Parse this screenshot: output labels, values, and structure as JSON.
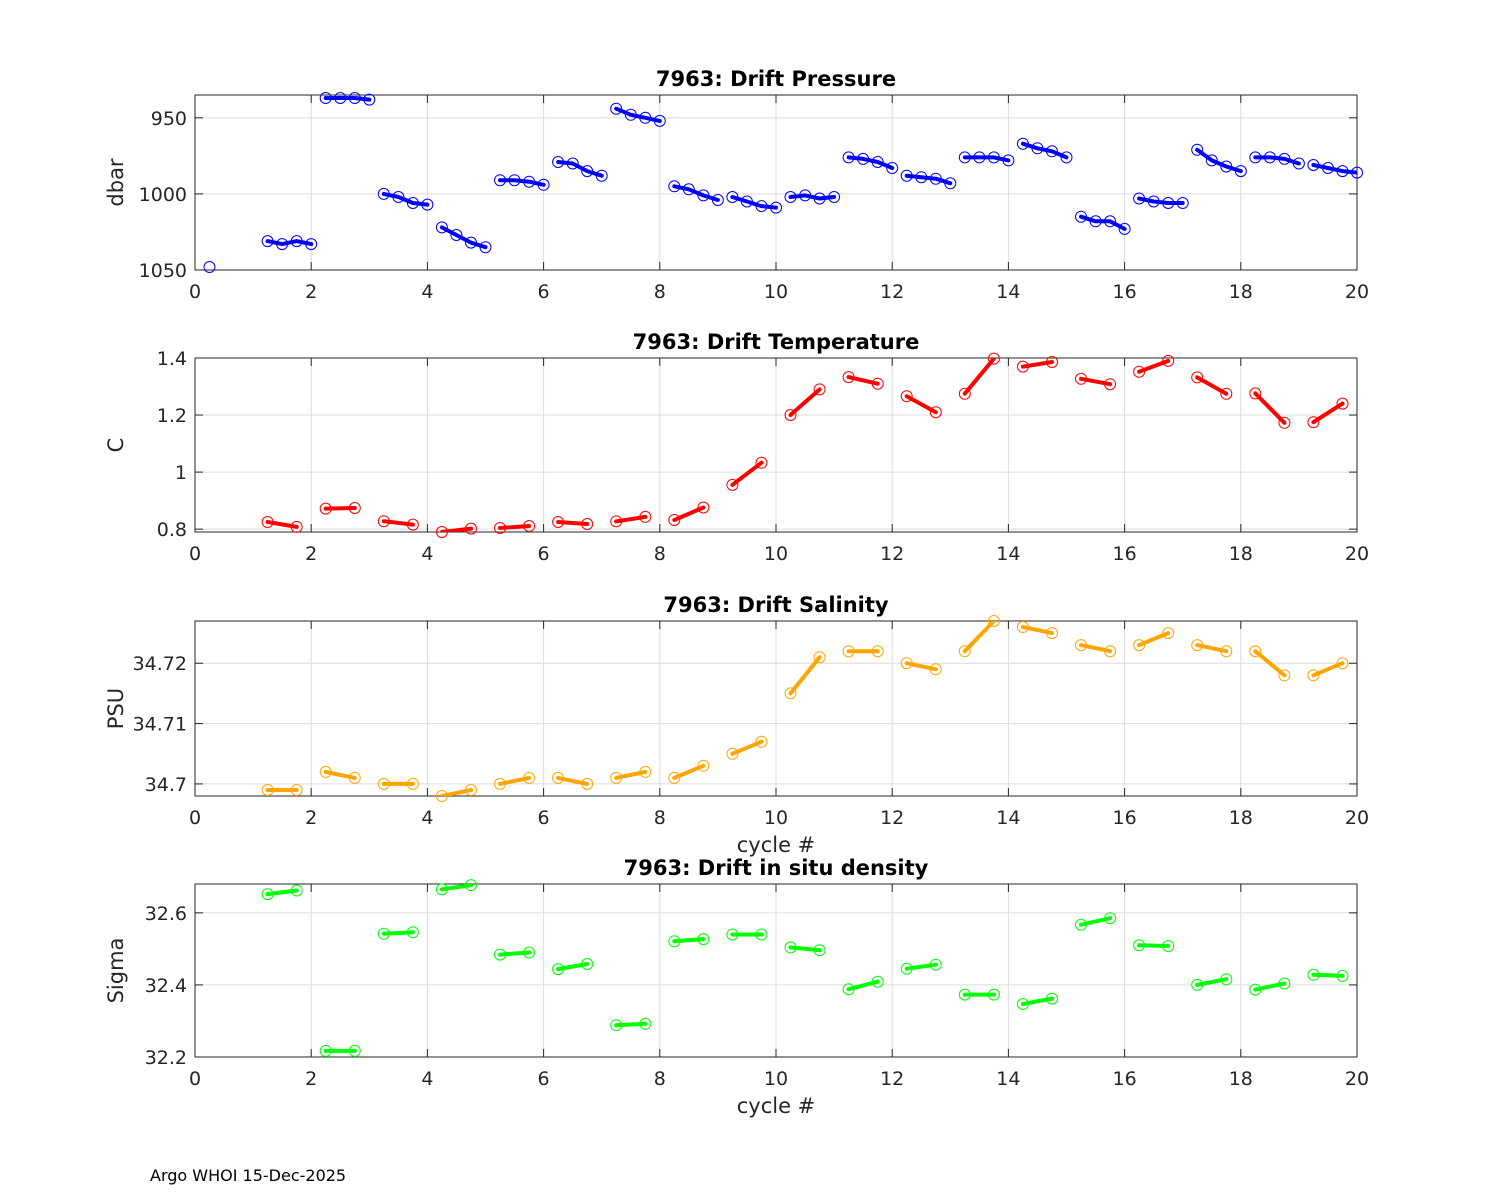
{
  "footer": "Argo WHOI 15-Dec-2025",
  "chart_data": [
    {
      "type": "line",
      "title": "7963: Drift Pressure",
      "xlabel": "",
      "ylabel": "dbar",
      "color": "#0000ff",
      "xlim": [
        0,
        20
      ],
      "ylim": [
        1050,
        935
      ],
      "reverse_y": true,
      "xticks": [
        0,
        2,
        4,
        6,
        8,
        10,
        12,
        14,
        16,
        18,
        20
      ],
      "yticks": [
        950,
        1000,
        1050
      ],
      "grid": true,
      "series": [
        {
          "name": "cycle-0",
          "x": [
            0.25
          ],
          "y": [
            1048
          ]
        },
        {
          "name": "cycle-1",
          "x": [
            1.25,
            1.5,
            1.75,
            2.0
          ],
          "y": [
            1031,
            1033,
            1031,
            1033
          ]
        },
        {
          "name": "cycle-2",
          "x": [
            2.25,
            2.5,
            2.75,
            3.0
          ],
          "y": [
            937,
            937,
            937,
            938
          ]
        },
        {
          "name": "cycle-3",
          "x": [
            3.25,
            3.5,
            3.75,
            4.0
          ],
          "y": [
            1000,
            1002,
            1006,
            1007
          ]
        },
        {
          "name": "cycle-4",
          "x": [
            4.25,
            4.5,
            4.75,
            5.0
          ],
          "y": [
            1022,
            1027,
            1032,
            1035
          ]
        },
        {
          "name": "cycle-5",
          "x": [
            5.25,
            5.5,
            5.75,
            6.0
          ],
          "y": [
            991,
            991,
            992,
            994
          ]
        },
        {
          "name": "cycle-6",
          "x": [
            6.25,
            6.5,
            6.75,
            7.0
          ],
          "y": [
            979,
            980,
            985,
            988
          ]
        },
        {
          "name": "cycle-7",
          "x": [
            7.25,
            7.5,
            7.75,
            8.0
          ],
          "y": [
            944,
            948,
            950,
            952
          ]
        },
        {
          "name": "cycle-8",
          "x": [
            8.25,
            8.5,
            8.75,
            9.0
          ],
          "y": [
            995,
            997,
            1001,
            1004
          ]
        },
        {
          "name": "cycle-9",
          "x": [
            9.25,
            9.5,
            9.75,
            10.0
          ],
          "y": [
            1002,
            1005,
            1008,
            1009
          ]
        },
        {
          "name": "cycle-10",
          "x": [
            10.25,
            10.5,
            10.75,
            11.0
          ],
          "y": [
            1002,
            1001,
            1003,
            1002
          ]
        },
        {
          "name": "cycle-11",
          "x": [
            11.25,
            11.5,
            11.75,
            12.0
          ],
          "y": [
            976,
            977,
            979,
            983
          ]
        },
        {
          "name": "cycle-12",
          "x": [
            12.25,
            12.5,
            12.75,
            13.0
          ],
          "y": [
            988,
            989,
            990,
            993
          ]
        },
        {
          "name": "cycle-13",
          "x": [
            13.25,
            13.5,
            13.75,
            14.0
          ],
          "y": [
            976,
            976,
            976,
            978
          ]
        },
        {
          "name": "cycle-14",
          "x": [
            14.25,
            14.5,
            14.75,
            15.0
          ],
          "y": [
            967,
            970,
            972,
            976
          ]
        },
        {
          "name": "cycle-15",
          "x": [
            15.25,
            15.5,
            15.75,
            16.0
          ],
          "y": [
            1015,
            1018,
            1018,
            1023
          ]
        },
        {
          "name": "cycle-16",
          "x": [
            16.25,
            16.5,
            16.75,
            17.0
          ],
          "y": [
            1003,
            1005,
            1006,
            1006
          ]
        },
        {
          "name": "cycle-17",
          "x": [
            17.25,
            17.5,
            17.75,
            18.0
          ],
          "y": [
            971,
            978,
            982,
            985
          ]
        },
        {
          "name": "cycle-18",
          "x": [
            18.25,
            18.5,
            18.75,
            19.0
          ],
          "y": [
            976,
            976,
            977,
            980
          ]
        },
        {
          "name": "cycle-19",
          "x": [
            19.25,
            19.5,
            19.75,
            20.0
          ],
          "y": [
            981,
            983,
            985,
            986
          ]
        }
      ]
    },
    {
      "type": "line",
      "title": "7963: Drift Temperature",
      "xlabel": "",
      "ylabel": "C",
      "color": "#ff0000",
      "xlim": [
        0,
        20
      ],
      "ylim": [
        0.79,
        1.4
      ],
      "reverse_y": false,
      "xticks": [
        0,
        2,
        4,
        6,
        8,
        10,
        12,
        14,
        16,
        18,
        20
      ],
      "yticks": [
        0.8,
        1,
        1.2,
        1.4
      ],
      "ytick_labels": [
        "0.8",
        "1",
        "1.2",
        "1.4"
      ],
      "grid": true,
      "series": [
        {
          "name": "cycle-1",
          "x": [
            1.25,
            1.75
          ],
          "y": [
            0.825,
            0.808
          ]
        },
        {
          "name": "cycle-2",
          "x": [
            2.25,
            2.75
          ],
          "y": [
            0.872,
            0.874
          ]
        },
        {
          "name": "cycle-3",
          "x": [
            3.25,
            3.75
          ],
          "y": [
            0.828,
            0.816
          ]
        },
        {
          "name": "cycle-4",
          "x": [
            4.25,
            4.75
          ],
          "y": [
            0.79,
            0.802
          ]
        },
        {
          "name": "cycle-5",
          "x": [
            5.25,
            5.75
          ],
          "y": [
            0.804,
            0.811
          ]
        },
        {
          "name": "cycle-6",
          "x": [
            6.25,
            6.75
          ],
          "y": [
            0.825,
            0.818
          ]
        },
        {
          "name": "cycle-7",
          "x": [
            7.25,
            7.75
          ],
          "y": [
            0.827,
            0.843
          ]
        },
        {
          "name": "cycle-8",
          "x": [
            8.25,
            8.75
          ],
          "y": [
            0.832,
            0.876
          ]
        },
        {
          "name": "cycle-9",
          "x": [
            9.25,
            9.75
          ],
          "y": [
            0.955,
            1.033
          ]
        },
        {
          "name": "cycle-10",
          "x": [
            10.25,
            10.75
          ],
          "y": [
            1.2,
            1.29
          ]
        },
        {
          "name": "cycle-11",
          "x": [
            11.25,
            11.75
          ],
          "y": [
            1.333,
            1.31
          ]
        },
        {
          "name": "cycle-12",
          "x": [
            12.25,
            12.75
          ],
          "y": [
            1.266,
            1.21
          ]
        },
        {
          "name": "cycle-13",
          "x": [
            13.25,
            13.75
          ],
          "y": [
            1.275,
            1.398
          ]
        },
        {
          "name": "cycle-14",
          "x": [
            14.25,
            14.75
          ],
          "y": [
            1.37,
            1.386
          ]
        },
        {
          "name": "cycle-15",
          "x": [
            15.25,
            15.75
          ],
          "y": [
            1.327,
            1.308
          ]
        },
        {
          "name": "cycle-16",
          "x": [
            16.25,
            16.75
          ],
          "y": [
            1.352,
            1.39
          ]
        },
        {
          "name": "cycle-17",
          "x": [
            17.25,
            17.75
          ],
          "y": [
            1.332,
            1.275
          ]
        },
        {
          "name": "cycle-18",
          "x": [
            18.25,
            18.75
          ],
          "y": [
            1.276,
            1.173
          ]
        },
        {
          "name": "cycle-19",
          "x": [
            19.25,
            19.75
          ],
          "y": [
            1.175,
            1.24
          ]
        }
      ]
    },
    {
      "type": "line",
      "title": "7963: Drift Salinity",
      "xlabel": "cycle #",
      "ylabel": "PSU",
      "color": "#ffa500",
      "xlim": [
        0,
        20
      ],
      "ylim": [
        34.698,
        34.727
      ],
      "reverse_y": false,
      "xticks": [
        0,
        2,
        4,
        6,
        8,
        10,
        12,
        14,
        16,
        18,
        20
      ],
      "yticks": [
        34.7,
        34.71,
        34.72
      ],
      "ytick_labels": [
        "34.7",
        "34.71",
        "34.72"
      ],
      "grid": true,
      "series": [
        {
          "name": "cycle-1",
          "x": [
            1.25,
            1.75
          ],
          "y": [
            34.699,
            34.699
          ]
        },
        {
          "name": "cycle-2",
          "x": [
            2.25,
            2.75
          ],
          "y": [
            34.702,
            34.701
          ]
        },
        {
          "name": "cycle-3",
          "x": [
            3.25,
            3.75
          ],
          "y": [
            34.7,
            34.7
          ]
        },
        {
          "name": "cycle-4",
          "x": [
            4.25,
            4.75
          ],
          "y": [
            34.698,
            34.699
          ]
        },
        {
          "name": "cycle-5",
          "x": [
            5.25,
            5.75
          ],
          "y": [
            34.7,
            34.701
          ]
        },
        {
          "name": "cycle-6",
          "x": [
            6.25,
            6.75
          ],
          "y": [
            34.701,
            34.7
          ]
        },
        {
          "name": "cycle-7",
          "x": [
            7.25,
            7.75
          ],
          "y": [
            34.701,
            34.702
          ]
        },
        {
          "name": "cycle-8",
          "x": [
            8.25,
            8.75
          ],
          "y": [
            34.701,
            34.703
          ]
        },
        {
          "name": "cycle-9",
          "x": [
            9.25,
            9.75
          ],
          "y": [
            34.705,
            34.707
          ]
        },
        {
          "name": "cycle-10",
          "x": [
            10.25,
            10.75
          ],
          "y": [
            34.715,
            34.721
          ]
        },
        {
          "name": "cycle-11",
          "x": [
            11.25,
            11.75
          ],
          "y": [
            34.722,
            34.722
          ]
        },
        {
          "name": "cycle-12",
          "x": [
            12.25,
            12.75
          ],
          "y": [
            34.72,
            34.719
          ]
        },
        {
          "name": "cycle-13",
          "x": [
            13.25,
            13.75
          ],
          "y": [
            34.722,
            34.727
          ]
        },
        {
          "name": "cycle-14",
          "x": [
            14.25,
            14.75
          ],
          "y": [
            34.726,
            34.725
          ]
        },
        {
          "name": "cycle-15",
          "x": [
            15.25,
            15.75
          ],
          "y": [
            34.723,
            34.722
          ]
        },
        {
          "name": "cycle-16",
          "x": [
            16.25,
            16.75
          ],
          "y": [
            34.723,
            34.725
          ]
        },
        {
          "name": "cycle-17",
          "x": [
            17.25,
            17.75
          ],
          "y": [
            34.723,
            34.722
          ]
        },
        {
          "name": "cycle-18",
          "x": [
            18.25,
            18.75
          ],
          "y": [
            34.722,
            34.718
          ]
        },
        {
          "name": "cycle-19",
          "x": [
            19.25,
            19.75
          ],
          "y": [
            34.718,
            34.72
          ]
        }
      ]
    },
    {
      "type": "line",
      "title": "7963: Drift in situ density",
      "xlabel": "cycle #",
      "ylabel": "Sigma",
      "color": "#00ff00",
      "xlim": [
        0,
        20
      ],
      "ylim": [
        32.2,
        32.68
      ],
      "reverse_y": false,
      "xticks": [
        0,
        2,
        4,
        6,
        8,
        10,
        12,
        14,
        16,
        18,
        20
      ],
      "yticks": [
        32.2,
        32.4,
        32.6
      ],
      "ytick_labels": [
        "32.2",
        "32.4",
        "32.6"
      ],
      "grid": true,
      "series": [
        {
          "name": "cycle-1",
          "x": [
            1.25,
            1.75
          ],
          "y": [
            32.652,
            32.662
          ]
        },
        {
          "name": "cycle-2",
          "x": [
            2.25,
            2.75
          ],
          "y": [
            32.217,
            32.217
          ]
        },
        {
          "name": "cycle-3",
          "x": [
            3.25,
            3.75
          ],
          "y": [
            32.542,
            32.546
          ]
        },
        {
          "name": "cycle-4",
          "x": [
            4.25,
            4.75
          ],
          "y": [
            32.665,
            32.677
          ]
        },
        {
          "name": "cycle-5",
          "x": [
            5.25,
            5.75
          ],
          "y": [
            32.484,
            32.49
          ]
        },
        {
          "name": "cycle-6",
          "x": [
            6.25,
            6.75
          ],
          "y": [
            32.444,
            32.458
          ]
        },
        {
          "name": "cycle-7",
          "x": [
            7.25,
            7.75
          ],
          "y": [
            32.288,
            32.292
          ]
        },
        {
          "name": "cycle-8",
          "x": [
            8.25,
            8.75
          ],
          "y": [
            32.521,
            32.527
          ]
        },
        {
          "name": "cycle-9",
          "x": [
            9.25,
            9.75
          ],
          "y": [
            32.54,
            32.54
          ]
        },
        {
          "name": "cycle-10",
          "x": [
            10.25,
            10.75
          ],
          "y": [
            32.504,
            32.496
          ]
        },
        {
          "name": "cycle-11",
          "x": [
            11.25,
            11.75
          ],
          "y": [
            32.388,
            32.409
          ]
        },
        {
          "name": "cycle-12",
          "x": [
            12.25,
            12.75
          ],
          "y": [
            32.445,
            32.456
          ]
        },
        {
          "name": "cycle-13",
          "x": [
            13.25,
            13.75
          ],
          "y": [
            32.373,
            32.373
          ]
        },
        {
          "name": "cycle-14",
          "x": [
            14.25,
            14.75
          ],
          "y": [
            32.347,
            32.362
          ]
        },
        {
          "name": "cycle-15",
          "x": [
            15.25,
            15.75
          ],
          "y": [
            32.567,
            32.585
          ]
        },
        {
          "name": "cycle-16",
          "x": [
            16.25,
            16.75
          ],
          "y": [
            32.51,
            32.508
          ]
        },
        {
          "name": "cycle-17",
          "x": [
            17.25,
            17.75
          ],
          "y": [
            32.4,
            32.416
          ]
        },
        {
          "name": "cycle-18",
          "x": [
            18.25,
            18.75
          ],
          "y": [
            32.387,
            32.404
          ]
        },
        {
          "name": "cycle-19",
          "x": [
            19.25,
            19.75
          ],
          "y": [
            32.428,
            32.425
          ]
        }
      ]
    }
  ]
}
